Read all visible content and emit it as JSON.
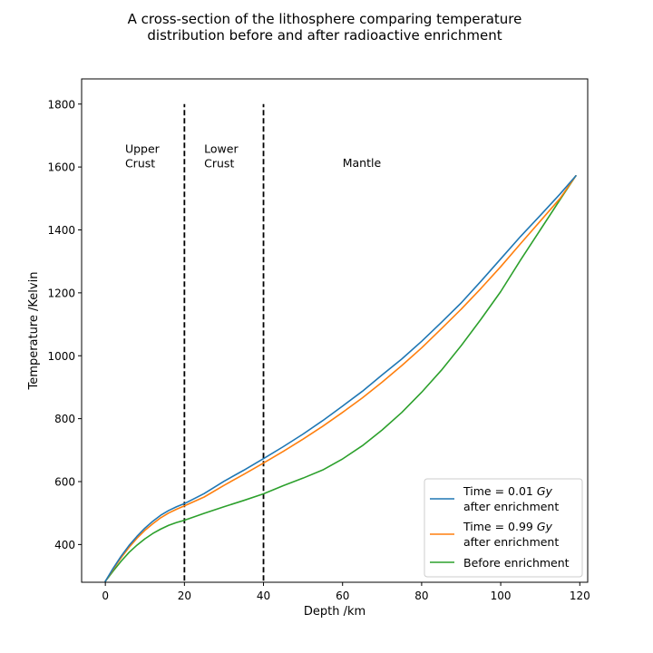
{
  "chart_data": {
    "type": "line",
    "title": "A cross-section of the lithosphere comparing temperature distribution before and after radioactive enrichment",
    "title_lines": [
      "A cross-section of the lithosphere comparing temperature",
      "distribution before and after radioactive enrichment"
    ],
    "xlabel": "Depth /km",
    "ylabel": "Temperature /Kelvin",
    "xlim": [
      -6,
      122
    ],
    "ylim": [
      280,
      1880
    ],
    "xticks": [
      0,
      20,
      40,
      60,
      80,
      100,
      120
    ],
    "yticks": [
      400,
      600,
      800,
      1000,
      1200,
      1400,
      1600,
      1800
    ],
    "grid": false,
    "legend_position": "lower-right",
    "boundaries": [
      {
        "x": 20,
        "y_range": [
          285,
          1800
        ],
        "style": "dashed",
        "color": "#000000"
      },
      {
        "x": 40,
        "y_range": [
          285,
          1800
        ],
        "style": "dashed",
        "color": "#000000"
      }
    ],
    "region_labels": [
      {
        "lines": [
          "Upper",
          "Crust"
        ],
        "x": 5,
        "y": 1645
      },
      {
        "lines": [
          "Lower",
          "Crust"
        ],
        "x": 25,
        "y": 1645
      },
      {
        "lines": [
          "Mantle"
        ],
        "x": 60,
        "y": 1600
      }
    ],
    "series": [
      {
        "name": "Time = 0.01 Gy after enrichment",
        "legend_lines": [
          "Time = 0.01 |Gy|",
          "after enrichment"
        ],
        "color": "#1f77b4",
        "x": [
          0,
          2,
          4,
          6,
          8,
          10,
          12,
          14,
          16,
          18,
          20,
          25,
          30,
          35,
          40,
          45,
          50,
          55,
          60,
          65,
          70,
          75,
          80,
          85,
          90,
          95,
          100,
          105,
          110,
          115,
          119
        ],
        "y": [
          283,
          325,
          363,
          397,
          426,
          452,
          474,
          493,
          508,
          520,
          530,
          562,
          601,
          636,
          673,
          711,
          751,
          794,
          840,
          887,
          939,
          990,
          1046,
          1106,
          1168,
          1237,
          1308,
          1379,
          1446,
          1514,
          1572
        ]
      },
      {
        "name": "Time = 0.99 Gy after enrichment",
        "legend_lines": [
          "Time = 0.99 |Gy|",
          "after enrichment"
        ],
        "color": "#ff7f0e",
        "x": [
          0,
          2,
          4,
          6,
          8,
          10,
          12,
          14,
          16,
          18,
          20,
          25,
          30,
          35,
          40,
          45,
          50,
          55,
          60,
          65,
          70,
          75,
          80,
          85,
          90,
          95,
          100,
          105,
          110,
          115,
          119
        ],
        "y": [
          283,
          322,
          358,
          391,
          420,
          445,
          466,
          485,
          500,
          512,
          523,
          551,
          588,
          623,
          659,
          696,
          735,
          776,
          820,
          866,
          916,
          969,
          1025,
          1086,
          1148,
          1214,
          1283,
          1356,
          1428,
          1500,
          1572
        ]
      },
      {
        "name": "Before enrichment",
        "legend_lines": [
          "Before enrichment"
        ],
        "color": "#2ca02c",
        "x": [
          0,
          2,
          4,
          6,
          8,
          10,
          12,
          14,
          16,
          18,
          20,
          25,
          30,
          35,
          40,
          45,
          50,
          55,
          60,
          65,
          70,
          75,
          80,
          85,
          90,
          95,
          100,
          105,
          110,
          115,
          119
        ],
        "y": [
          283,
          316,
          347,
          375,
          398,
          418,
          435,
          449,
          461,
          470,
          477,
          499,
          520,
          540,
          561,
          587,
          611,
          637,
          672,
          714,
          764,
          820,
          884,
          954,
          1032,
          1116,
          1204,
          1304,
          1400,
          1496,
          1572
        ]
      }
    ]
  }
}
